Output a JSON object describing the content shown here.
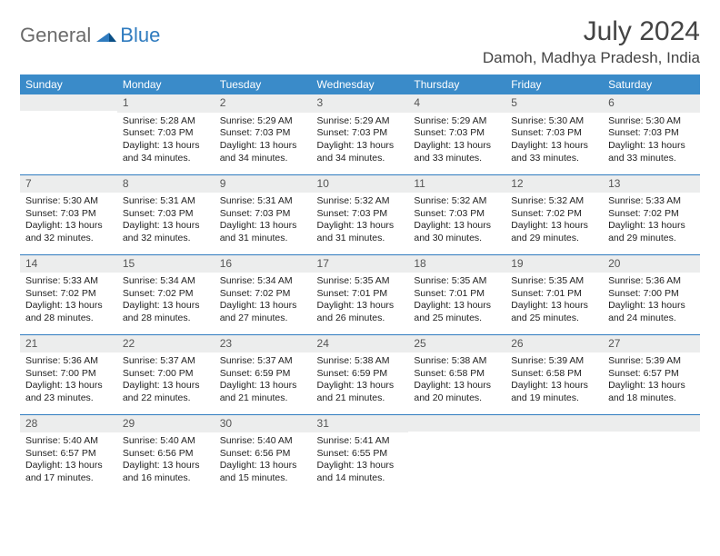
{
  "brand": {
    "part1": "General",
    "part2": "Blue"
  },
  "title": "July 2024",
  "location": "Damoh, Madhya Pradesh, India",
  "weekday_labels": [
    "Sunday",
    "Monday",
    "Tuesday",
    "Wednesday",
    "Thursday",
    "Friday",
    "Saturday"
  ],
  "colors": {
    "header_bg": "#3a8bc9",
    "daynum_bg": "#eceded",
    "rule": "#2f7bbf",
    "logo_gray": "#6b6b6b",
    "logo_blue": "#2f7bbf"
  },
  "weeks": [
    [
      {
        "n": "",
        "lines": []
      },
      {
        "n": "1",
        "lines": [
          "Sunrise: 5:28 AM",
          "Sunset: 7:03 PM",
          "Daylight: 13 hours",
          "and 34 minutes."
        ]
      },
      {
        "n": "2",
        "lines": [
          "Sunrise: 5:29 AM",
          "Sunset: 7:03 PM",
          "Daylight: 13 hours",
          "and 34 minutes."
        ]
      },
      {
        "n": "3",
        "lines": [
          "Sunrise: 5:29 AM",
          "Sunset: 7:03 PM",
          "Daylight: 13 hours",
          "and 34 minutes."
        ]
      },
      {
        "n": "4",
        "lines": [
          "Sunrise: 5:29 AM",
          "Sunset: 7:03 PM",
          "Daylight: 13 hours",
          "and 33 minutes."
        ]
      },
      {
        "n": "5",
        "lines": [
          "Sunrise: 5:30 AM",
          "Sunset: 7:03 PM",
          "Daylight: 13 hours",
          "and 33 minutes."
        ]
      },
      {
        "n": "6",
        "lines": [
          "Sunrise: 5:30 AM",
          "Sunset: 7:03 PM",
          "Daylight: 13 hours",
          "and 33 minutes."
        ]
      }
    ],
    [
      {
        "n": "7",
        "lines": [
          "Sunrise: 5:30 AM",
          "Sunset: 7:03 PM",
          "Daylight: 13 hours",
          "and 32 minutes."
        ]
      },
      {
        "n": "8",
        "lines": [
          "Sunrise: 5:31 AM",
          "Sunset: 7:03 PM",
          "Daylight: 13 hours",
          "and 32 minutes."
        ]
      },
      {
        "n": "9",
        "lines": [
          "Sunrise: 5:31 AM",
          "Sunset: 7:03 PM",
          "Daylight: 13 hours",
          "and 31 minutes."
        ]
      },
      {
        "n": "10",
        "lines": [
          "Sunrise: 5:32 AM",
          "Sunset: 7:03 PM",
          "Daylight: 13 hours",
          "and 31 minutes."
        ]
      },
      {
        "n": "11",
        "lines": [
          "Sunrise: 5:32 AM",
          "Sunset: 7:03 PM",
          "Daylight: 13 hours",
          "and 30 minutes."
        ]
      },
      {
        "n": "12",
        "lines": [
          "Sunrise: 5:32 AM",
          "Sunset: 7:02 PM",
          "Daylight: 13 hours",
          "and 29 minutes."
        ]
      },
      {
        "n": "13",
        "lines": [
          "Sunrise: 5:33 AM",
          "Sunset: 7:02 PM",
          "Daylight: 13 hours",
          "and 29 minutes."
        ]
      }
    ],
    [
      {
        "n": "14",
        "lines": [
          "Sunrise: 5:33 AM",
          "Sunset: 7:02 PM",
          "Daylight: 13 hours",
          "and 28 minutes."
        ]
      },
      {
        "n": "15",
        "lines": [
          "Sunrise: 5:34 AM",
          "Sunset: 7:02 PM",
          "Daylight: 13 hours",
          "and 28 minutes."
        ]
      },
      {
        "n": "16",
        "lines": [
          "Sunrise: 5:34 AM",
          "Sunset: 7:02 PM",
          "Daylight: 13 hours",
          "and 27 minutes."
        ]
      },
      {
        "n": "17",
        "lines": [
          "Sunrise: 5:35 AM",
          "Sunset: 7:01 PM",
          "Daylight: 13 hours",
          "and 26 minutes."
        ]
      },
      {
        "n": "18",
        "lines": [
          "Sunrise: 5:35 AM",
          "Sunset: 7:01 PM",
          "Daylight: 13 hours",
          "and 25 minutes."
        ]
      },
      {
        "n": "19",
        "lines": [
          "Sunrise: 5:35 AM",
          "Sunset: 7:01 PM",
          "Daylight: 13 hours",
          "and 25 minutes."
        ]
      },
      {
        "n": "20",
        "lines": [
          "Sunrise: 5:36 AM",
          "Sunset: 7:00 PM",
          "Daylight: 13 hours",
          "and 24 minutes."
        ]
      }
    ],
    [
      {
        "n": "21",
        "lines": [
          "Sunrise: 5:36 AM",
          "Sunset: 7:00 PM",
          "Daylight: 13 hours",
          "and 23 minutes."
        ]
      },
      {
        "n": "22",
        "lines": [
          "Sunrise: 5:37 AM",
          "Sunset: 7:00 PM",
          "Daylight: 13 hours",
          "and 22 minutes."
        ]
      },
      {
        "n": "23",
        "lines": [
          "Sunrise: 5:37 AM",
          "Sunset: 6:59 PM",
          "Daylight: 13 hours",
          "and 21 minutes."
        ]
      },
      {
        "n": "24",
        "lines": [
          "Sunrise: 5:38 AM",
          "Sunset: 6:59 PM",
          "Daylight: 13 hours",
          "and 21 minutes."
        ]
      },
      {
        "n": "25",
        "lines": [
          "Sunrise: 5:38 AM",
          "Sunset: 6:58 PM",
          "Daylight: 13 hours",
          "and 20 minutes."
        ]
      },
      {
        "n": "26",
        "lines": [
          "Sunrise: 5:39 AM",
          "Sunset: 6:58 PM",
          "Daylight: 13 hours",
          "and 19 minutes."
        ]
      },
      {
        "n": "27",
        "lines": [
          "Sunrise: 5:39 AM",
          "Sunset: 6:57 PM",
          "Daylight: 13 hours",
          "and 18 minutes."
        ]
      }
    ],
    [
      {
        "n": "28",
        "lines": [
          "Sunrise: 5:40 AM",
          "Sunset: 6:57 PM",
          "Daylight: 13 hours",
          "and 17 minutes."
        ]
      },
      {
        "n": "29",
        "lines": [
          "Sunrise: 5:40 AM",
          "Sunset: 6:56 PM",
          "Daylight: 13 hours",
          "and 16 minutes."
        ]
      },
      {
        "n": "30",
        "lines": [
          "Sunrise: 5:40 AM",
          "Sunset: 6:56 PM",
          "Daylight: 13 hours",
          "and 15 minutes."
        ]
      },
      {
        "n": "31",
        "lines": [
          "Sunrise: 5:41 AM",
          "Sunset: 6:55 PM",
          "Daylight: 13 hours",
          "and 14 minutes."
        ]
      },
      {
        "n": "",
        "lines": []
      },
      {
        "n": "",
        "lines": []
      },
      {
        "n": "",
        "lines": []
      }
    ]
  ]
}
